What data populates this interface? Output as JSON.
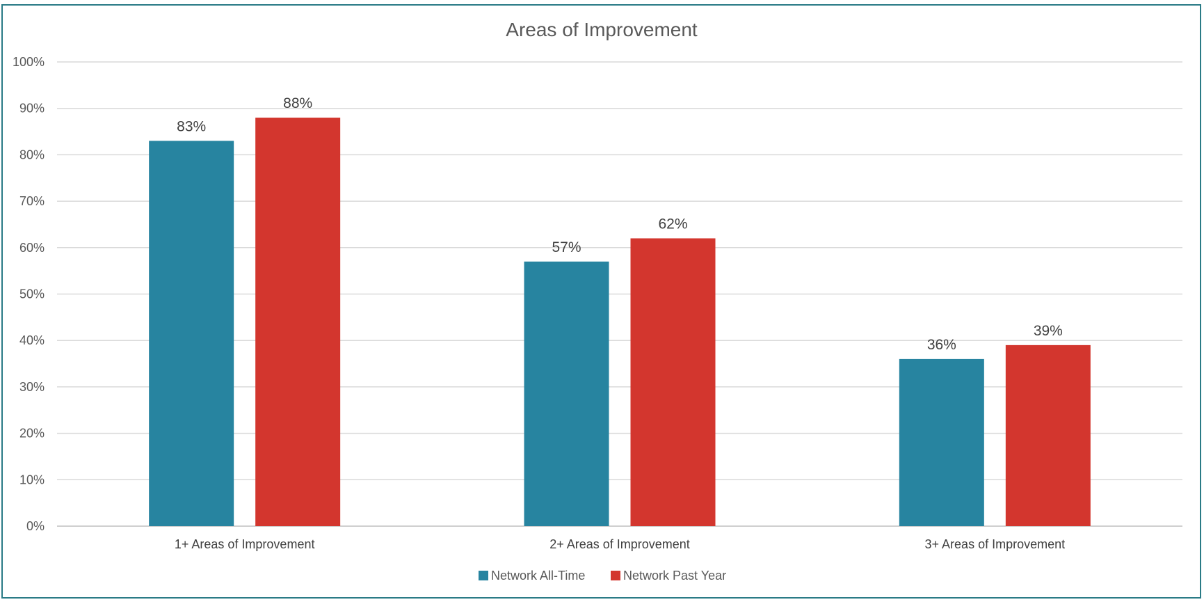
{
  "chart_data": {
    "type": "bar",
    "title": "Areas of Improvement",
    "categories": [
      "1+ Areas of Improvement",
      "2+ Areas of Improvement",
      "3+ Areas of Improvement"
    ],
    "series": [
      {
        "name": "Network All-Time",
        "values": [
          83,
          57,
          36
        ],
        "labels": [
          "83%",
          "57%",
          "36%"
        ],
        "color": "#2784a0"
      },
      {
        "name": "Network Past Year",
        "values": [
          88,
          62,
          39
        ],
        "labels": [
          "88%",
          "62%",
          "39%"
        ],
        "color": "#d3362e"
      }
    ],
    "ylim": [
      0,
      100
    ],
    "yticks": [
      "0%",
      "10%",
      "20%",
      "30%",
      "40%",
      "50%",
      "60%",
      "70%",
      "80%",
      "90%",
      "100%"
    ],
    "grid": true,
    "legend": "bottom",
    "border_color": "#2a7b86"
  }
}
